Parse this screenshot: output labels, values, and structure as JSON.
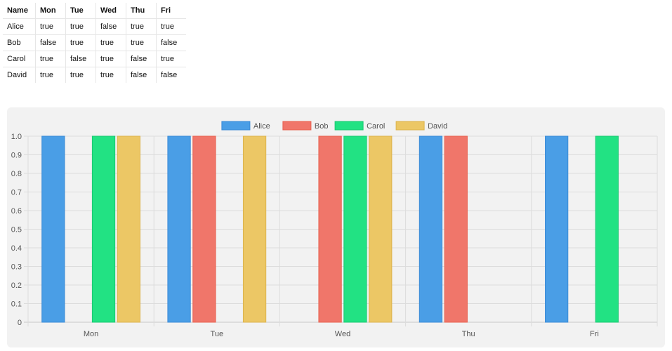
{
  "table": {
    "headers": [
      "Name",
      "Mon",
      "Tue",
      "Wed",
      "Thu",
      "Fri"
    ],
    "rows": [
      [
        "Alice",
        "true",
        "true",
        "false",
        "true",
        "true"
      ],
      [
        "Bob",
        "false",
        "true",
        "true",
        "true",
        "false"
      ],
      [
        "Carol",
        "true",
        "false",
        "true",
        "false",
        "true"
      ],
      [
        "David",
        "true",
        "true",
        "true",
        "false",
        "false"
      ]
    ]
  },
  "chart_data": {
    "type": "bar",
    "categories": [
      "Mon",
      "Tue",
      "Wed",
      "Thu",
      "Fri"
    ],
    "series": [
      {
        "name": "Alice",
        "values": [
          1,
          1,
          0,
          1,
          1
        ],
        "color": "#4a9ee6",
        "border": "#3a8ad6"
      },
      {
        "name": "Bob",
        "values": [
          0,
          1,
          1,
          1,
          0
        ],
        "color": "#f0766a",
        "border": "#e8604f"
      },
      {
        "name": "Carol",
        "values": [
          1,
          0,
          1,
          0,
          1
        ],
        "color": "#22e283",
        "border": "#18c870"
      },
      {
        "name": "David",
        "values": [
          1,
          1,
          1,
          0,
          0
        ],
        "color": "#ecc765",
        "border": "#dcb34c"
      }
    ],
    "ylim": [
      0,
      1
    ],
    "yticks": [
      "0",
      "0.1",
      "0.2",
      "0.3",
      "0.4",
      "0.5",
      "0.6",
      "0.7",
      "0.8",
      "0.9",
      "1.0"
    ],
    "grid": true,
    "legend": "top-center"
  }
}
